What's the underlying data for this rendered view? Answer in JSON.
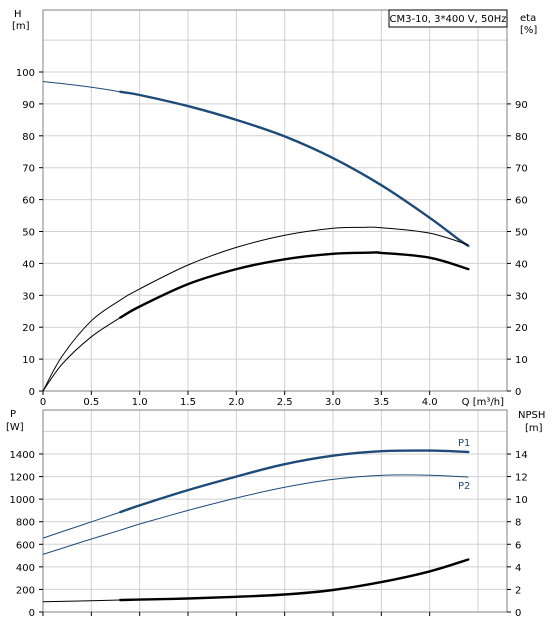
{
  "chart_data": [
    {
      "type": "line",
      "panel": "top",
      "title": "CM3-10, 3*400 V, 50Hz",
      "x_axis": {
        "label": "Q [m³/h]",
        "range": [
          0,
          4.8
        ],
        "ticks": [
          "0",
          "0.5",
          "1.0",
          "1.5",
          "2.0",
          "2.5",
          "3.0",
          "3.5",
          "4.0"
        ],
        "tick_values": [
          0,
          0.5,
          1.0,
          1.5,
          2.0,
          2.5,
          3.0,
          3.5,
          4.0
        ]
      },
      "y_left": {
        "label_lines": [
          "H",
          "[m]"
        ],
        "range": [
          0,
          100
        ],
        "ticks": [
          "0",
          "10",
          "20",
          "30",
          "40",
          "50",
          "60",
          "70",
          "80",
          "90",
          "100"
        ],
        "tick_values": [
          0,
          10,
          20,
          30,
          40,
          50,
          60,
          70,
          80,
          90,
          100
        ]
      },
      "y_right": {
        "label_lines": [
          "eta",
          "[%]"
        ],
        "range": [
          0,
          100
        ],
        "ticks": [
          "0",
          "10",
          "20",
          "30",
          "40",
          "50",
          "60",
          "70",
          "80",
          "90"
        ],
        "tick_values": [
          0,
          10,
          20,
          30,
          40,
          50,
          60,
          70,
          80,
          90
        ]
      },
      "grid": true,
      "series": [
        {
          "axis": "left",
          "color": "#1e4a7a",
          "style": "head",
          "thick_from": 0.8,
          "x": [
            0,
            0.3,
            0.6,
            0.8,
            1.0,
            1.5,
            2.0,
            2.5,
            3.0,
            3.5,
            4.0,
            4.3,
            4.4
          ],
          "values": [
            97,
            96,
            94.8,
            93.8,
            92.8,
            89.3,
            85.0,
            79.8,
            73.0,
            64.5,
            54.3,
            47.5,
            45.5
          ]
        },
        {
          "axis": "right",
          "color": "#000000",
          "style": "thin",
          "x": [
            0,
            0.2,
            0.5,
            0.8,
            1.0,
            1.5,
            2.0,
            2.5,
            3.0,
            3.3,
            3.5,
            4.0,
            4.4
          ],
          "values": [
            0,
            11,
            22,
            28.5,
            32,
            39.5,
            45.0,
            48.8,
            51.0,
            51.3,
            51.2,
            49.5,
            45.8
          ]
        },
        {
          "axis": "right",
          "color": "#000000",
          "style": "thick",
          "thick_from": 0.8,
          "x": [
            0,
            0.2,
            0.5,
            0.8,
            1.0,
            1.5,
            2.0,
            2.5,
            3.0,
            3.4,
            3.5,
            4.0,
            4.4
          ],
          "values": [
            0,
            8.5,
            17.0,
            23.0,
            26.5,
            33.5,
            38.2,
            41.3,
            43.0,
            43.4,
            43.3,
            41.8,
            38.2
          ]
        }
      ]
    },
    {
      "type": "line",
      "panel": "bottom",
      "x_range": [
        0,
        4.8
      ],
      "y_left": {
        "label_lines": [
          "P",
          "[W]"
        ],
        "range": [
          0,
          1600
        ],
        "ticks": [
          "0",
          "200",
          "400",
          "600",
          "800",
          "1000",
          "1200",
          "1400"
        ],
        "tick_values": [
          0,
          200,
          400,
          600,
          800,
          1000,
          1200,
          1400
        ]
      },
      "y_right": {
        "label_lines": [
          "NPSH",
          "[m]"
        ],
        "range": [
          0,
          16
        ],
        "ticks": [
          "0",
          "2",
          "4",
          "6",
          "8",
          "10",
          "12",
          "14"
        ],
        "tick_values": [
          0,
          2,
          4,
          6,
          8,
          10,
          12,
          14
        ]
      },
      "grid": true,
      "series": [
        {
          "name": "P1",
          "axis": "left",
          "color": "#1e4a7a",
          "style": "power",
          "thick_from": 0.8,
          "x": [
            0,
            0.4,
            0.8,
            1.0,
            1.5,
            2.0,
            2.5,
            3.0,
            3.5,
            4.0,
            4.4
          ],
          "values": [
            655,
            770,
            885,
            945,
            1080,
            1200,
            1310,
            1385,
            1425,
            1430,
            1418
          ]
        },
        {
          "name": "P2",
          "axis": "left",
          "color": "#1e4a7a",
          "style": "thin",
          "x": [
            0,
            0.4,
            0.8,
            1.0,
            1.5,
            2.0,
            2.5,
            3.0,
            3.5,
            4.0,
            4.4
          ],
          "values": [
            510,
            620,
            725,
            780,
            900,
            1010,
            1105,
            1175,
            1210,
            1212,
            1195
          ]
        },
        {
          "axis": "right",
          "color": "#000000",
          "style": "npsh",
          "thick_from": 0.8,
          "x": [
            0,
            0.5,
            1.0,
            1.5,
            2.0,
            2.5,
            3.0,
            3.5,
            4.0,
            4.4
          ],
          "values": [
            0.9,
            1.0,
            1.1,
            1.2,
            1.35,
            1.55,
            1.95,
            2.65,
            3.6,
            4.65
          ]
        }
      ]
    }
  ]
}
